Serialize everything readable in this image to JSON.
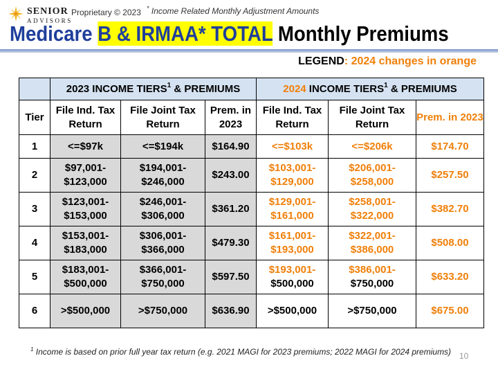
{
  "logo": {
    "name": "SENIOR",
    "sub": "ADVISORS"
  },
  "proprietary": "Proprietary © 2023",
  "top_note": {
    "marker": "*",
    "text": "Income Related Monthly Adjustment Amounts"
  },
  "title": {
    "part1": "Medicare ",
    "highlight": "B & IRMAA* TOTAL",
    "part3": " Monthly Premiums"
  },
  "legend": {
    "key": "LEGEND",
    "value": ": 2024 changes in orange"
  },
  "colors": {
    "title_blue": "#1f3f9c",
    "highlight": "#ffff00",
    "orange": "#f07f09",
    "header_bg": "#d5e2f1",
    "grey_cell": "#d9d9d9"
  },
  "table": {
    "group_2023": {
      "label": "2023 INCOME TIERS",
      "sup": "1",
      "suffix": " & PREMIUMS"
    },
    "group_2024": {
      "year": "2024",
      "label": " INCOME TIERS",
      "sup": "1",
      "suffix": " & PREMIUMS"
    },
    "columns": {
      "tier": "Tier",
      "ind": "File Ind. Tax Return",
      "joint": "File Joint Tax Return",
      "prem_2023": "Prem. in 2023",
      "ind_2024": "File Ind. Tax Return",
      "joint_2024": "File Joint Tax Return",
      "prem_2024": "Prem. in 2023"
    },
    "rows": [
      {
        "tier": "1",
        "ind": "<=$97k",
        "joint": "<=$194k",
        "prem": "$164.90",
        "ind24": "<=$103k",
        "joint24": "<=$206k",
        "prem24": "$174.70",
        "ind24_changed": true,
        "joint24_changed": true
      },
      {
        "tier": "2",
        "ind": "$97,001- $123,000",
        "joint": "$194,001- $246,000",
        "prem": "$243.00",
        "ind24": "$103,001- $129,000",
        "joint24": "$206,001- $258,000",
        "prem24": "$257.50",
        "ind24_changed": true,
        "joint24_changed": true
      },
      {
        "tier": "3",
        "ind": "$123,001- $153,000",
        "joint": "$246,001- $306,000",
        "prem": "$361.20",
        "ind24": "$129,001- $161,000",
        "joint24": "$258,001- $322,000",
        "prem24": "$382.70",
        "ind24_changed": true,
        "joint24_changed": true
      },
      {
        "tier": "4",
        "ind": "$153,001- $183,000",
        "joint": "$306,001- $366,000",
        "prem": "$479.30",
        "ind24": "$161,001- $193,000",
        "joint24": "$322,001- $386,000",
        "prem24": "$508.00",
        "ind24_changed": true,
        "joint24_changed": true
      },
      {
        "tier": "5",
        "ind": "$183,001- $500,000",
        "joint": "$366,001- $750,000",
        "prem": "$597.50",
        "ind24_a": "$193,001-",
        "ind24_b": "$500,000",
        "joint24_a": "$386,001-",
        "joint24_b": "$750,000",
        "prem24": "$633.20",
        "ind24_changed": "first line only",
        "joint24_changed": "first line only"
      },
      {
        "tier": "6",
        "ind": ">$500,000",
        "joint": ">$750,000",
        "prem": "$636.90",
        "ind24": ">$500,000",
        "joint24": ">$750,000",
        "prem24": "$675.00",
        "ind24_changed": false,
        "joint24_changed": false
      }
    ]
  },
  "footnote": {
    "marker": "1",
    "text": " Income is based on prior full year tax return (e.g. 2021 MAGI for 2023 premiums; 2022 MAGI for 2024 premiums)"
  },
  "page_number": "10"
}
